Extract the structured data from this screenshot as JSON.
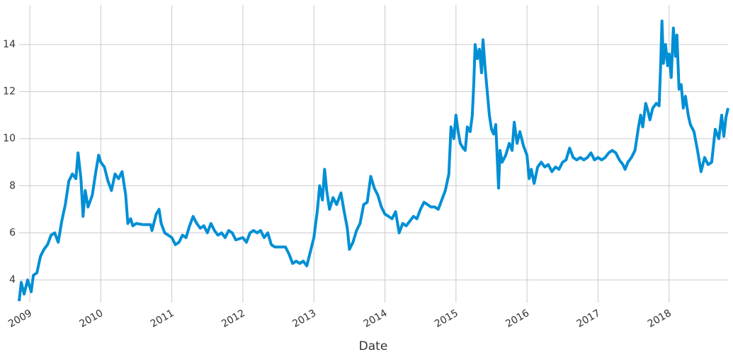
{
  "chart_data": {
    "type": "line",
    "x_label": "Date",
    "color": "#008fd5",
    "grid": true,
    "xlim": [
      2008.85,
      2018.83
    ],
    "xticks": [
      2009,
      2010,
      2011,
      2012,
      2013,
      2014,
      2015,
      2016,
      2017,
      2018
    ],
    "ylim": [
      3.04,
      15.68
    ],
    "yticks": [
      4,
      6,
      8,
      10,
      12,
      14
    ],
    "x": [
      2008.85,
      2008.88,
      2008.92,
      2008.97,
      2009.02,
      2009.05,
      2009.1,
      2009.15,
      2009.2,
      2009.25,
      2009.3,
      2009.35,
      2009.4,
      2009.45,
      2009.5,
      2009.55,
      2009.6,
      2009.65,
      2009.68,
      2009.72,
      2009.75,
      2009.78,
      2009.82,
      2009.88,
      2009.93,
      2009.97,
      2010.0,
      2010.05,
      2010.1,
      2010.15,
      2010.2,
      2010.25,
      2010.3,
      2010.35,
      2010.38,
      2010.42,
      2010.45,
      2010.5,
      2010.6,
      2010.7,
      2010.72,
      2010.78,
      2010.82,
      2010.85,
      2010.9,
      2010.95,
      2011.0,
      2011.05,
      2011.1,
      2011.15,
      2011.2,
      2011.25,
      2011.3,
      2011.35,
      2011.4,
      2011.45,
      2011.5,
      2011.55,
      2011.6,
      2011.65,
      2011.7,
      2011.75,
      2011.8,
      2011.85,
      2011.9,
      2012.0,
      2012.05,
      2012.1,
      2012.15,
      2012.2,
      2012.25,
      2012.3,
      2012.35,
      2012.4,
      2012.45,
      2012.5,
      2012.6,
      2012.65,
      2012.7,
      2012.75,
      2012.8,
      2012.85,
      2012.9,
      2012.95,
      2013.0,
      2013.05,
      2013.08,
      2013.12,
      2013.15,
      2013.18,
      2013.22,
      2013.27,
      2013.32,
      2013.38,
      2013.42,
      2013.47,
      2013.5,
      2013.55,
      2013.6,
      2013.65,
      2013.7,
      2013.75,
      2013.8,
      2013.85,
      2013.9,
      2013.95,
      2014.0,
      2014.05,
      2014.1,
      2014.15,
      2014.2,
      2014.25,
      2014.3,
      2014.35,
      2014.4,
      2014.45,
      2014.5,
      2014.55,
      2014.6,
      2014.65,
      2014.7,
      2014.75,
      2014.8,
      2014.85,
      2014.9,
      2014.93,
      2014.97,
      2015.0,
      2015.03,
      2015.06,
      2015.1,
      2015.13,
      2015.16,
      2015.2,
      2015.23,
      2015.25,
      2015.27,
      2015.3,
      2015.33,
      2015.36,
      2015.38,
      2015.41,
      2015.44,
      2015.47,
      2015.5,
      2015.53,
      2015.56,
      2015.6,
      2015.62,
      2015.65,
      2015.7,
      2015.75,
      2015.79,
      2015.82,
      2015.86,
      2015.9,
      2015.95,
      2016.0,
      2016.03,
      2016.06,
      2016.1,
      2016.15,
      2016.2,
      2016.25,
      2016.3,
      2016.35,
      2016.4,
      2016.45,
      2016.5,
      2016.55,
      2016.6,
      2016.65,
      2016.7,
      2016.75,
      2016.8,
      2016.85,
      2016.9,
      2016.95,
      2017.0,
      2017.05,
      2017.1,
      2017.15,
      2017.2,
      2017.25,
      2017.3,
      2017.35,
      2017.38,
      2017.42,
      2017.47,
      2017.52,
      2017.57,
      2017.6,
      2017.63,
      2017.67,
      2017.7,
      2017.73,
      2017.77,
      2017.82,
      2017.86,
      2017.88,
      2017.9,
      2017.92,
      2017.95,
      2017.98,
      2018.0,
      2018.03,
      2018.06,
      2018.09,
      2018.11,
      2018.14,
      2018.17,
      2018.2,
      2018.23,
      2018.27,
      2018.3,
      2018.35,
      2018.4,
      2018.45,
      2018.5,
      2018.55,
      2018.6,
      2018.65,
      2018.7,
      2018.74,
      2018.77,
      2018.8,
      2018.83
    ],
    "values": [
      3.1,
      3.9,
      3.4,
      4.0,
      3.5,
      4.2,
      4.3,
      5.0,
      5.3,
      5.5,
      5.9,
      6.0,
      5.6,
      6.5,
      7.2,
      8.2,
      8.5,
      8.3,
      9.4,
      8.3,
      6.7,
      7.8,
      7.1,
      7.6,
      8.6,
      9.3,
      9.0,
      8.8,
      8.2,
      7.8,
      8.5,
      8.3,
      8.6,
      7.6,
      6.4,
      6.6,
      6.3,
      6.4,
      6.35,
      6.35,
      6.1,
      6.8,
      7.0,
      6.4,
      6.0,
      5.9,
      5.8,
      5.5,
      5.6,
      5.9,
      5.8,
      6.3,
      6.7,
      6.4,
      6.2,
      6.3,
      6.0,
      6.4,
      6.1,
      5.9,
      6.0,
      5.8,
      6.1,
      6.0,
      5.7,
      5.8,
      5.6,
      6.0,
      6.1,
      6.0,
      6.1,
      5.8,
      6.0,
      5.5,
      5.4,
      5.4,
      5.4,
      5.1,
      4.7,
      4.8,
      4.7,
      4.8,
      4.6,
      5.2,
      5.8,
      7.0,
      8.0,
      7.4,
      8.7,
      7.8,
      7.0,
      7.5,
      7.2,
      7.7,
      7.0,
      6.2,
      5.3,
      5.6,
      6.1,
      6.4,
      7.2,
      7.3,
      8.4,
      7.9,
      7.6,
      7.1,
      6.8,
      6.7,
      6.6,
      6.9,
      6.0,
      6.4,
      6.3,
      6.5,
      6.7,
      6.6,
      7.0,
      7.3,
      7.2,
      7.1,
      7.1,
      7.0,
      7.4,
      7.8,
      8.5,
      10.5,
      10.0,
      11.0,
      10.3,
      9.8,
      9.6,
      9.5,
      10.5,
      10.3,
      11.0,
      12.3,
      14.0,
      13.4,
      13.8,
      12.8,
      14.2,
      13.0,
      12.0,
      11.0,
      10.4,
      10.2,
      10.6,
      7.9,
      9.5,
      9.0,
      9.3,
      9.8,
      9.5,
      10.7,
      9.8,
      10.3,
      9.7,
      9.3,
      8.3,
      8.7,
      8.1,
      8.8,
      9.0,
      8.8,
      8.9,
      8.6,
      8.8,
      8.7,
      9.0,
      9.1,
      9.6,
      9.2,
      9.1,
      9.2,
      9.1,
      9.2,
      9.4,
      9.1,
      9.2,
      9.1,
      9.2,
      9.4,
      9.5,
      9.4,
      9.1,
      8.9,
      8.7,
      9.0,
      9.2,
      9.5,
      10.5,
      11.0,
      10.5,
      11.5,
      11.2,
      10.8,
      11.3,
      11.5,
      11.4,
      13.0,
      15.0,
      13.2,
      14.0,
      13.1,
      13.6,
      12.6,
      14.7,
      13.5,
      14.4,
      12.1,
      12.3,
      11.3,
      11.8,
      11.0,
      10.6,
      10.3,
      9.5,
      8.6,
      9.2,
      8.9,
      9.0,
      10.4,
      10.0,
      11.0,
      10.1,
      10.9,
      11.3
    ]
  }
}
